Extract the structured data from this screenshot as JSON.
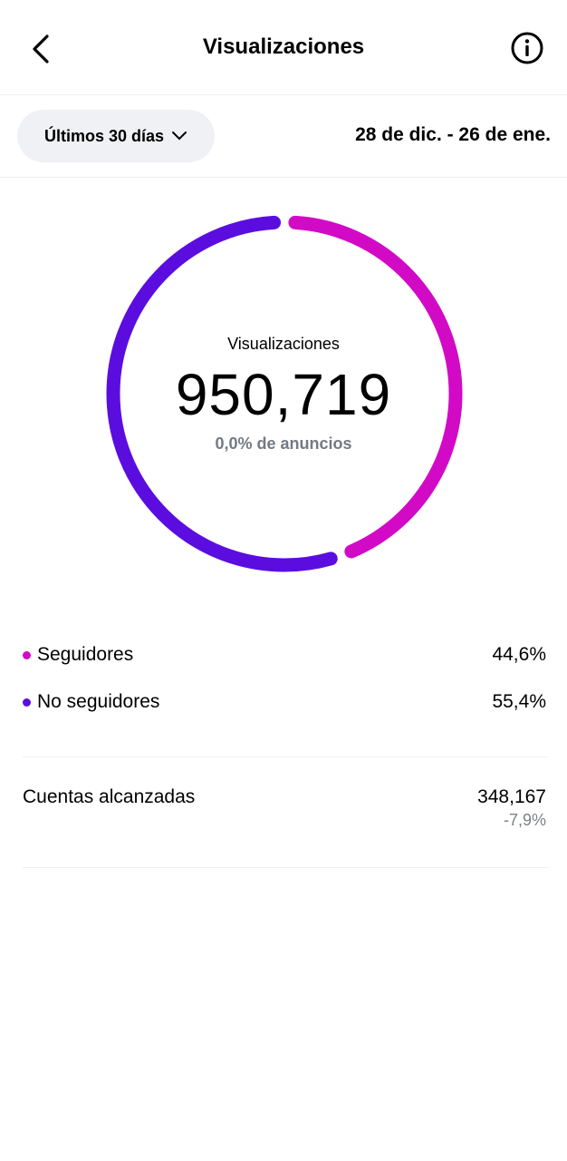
{
  "header": {
    "title": "Visualizaciones",
    "back_icon": "chevron-left-icon",
    "info_icon": "info-icon"
  },
  "filter": {
    "period": "Últimos 30 días",
    "range": "28 de dic. - 26 de ene."
  },
  "summary": {
    "label": "Visualizaciones",
    "value": "950,719",
    "ads": "0,0% de anuncios"
  },
  "colors": {
    "followers": "#d20ac6",
    "non_followers": "#5b0de0"
  },
  "breakdown": [
    {
      "label": "Seguidores",
      "value": "44,6%",
      "fraction": 0.446
    },
    {
      "label": "No seguidores",
      "value": "55,4%",
      "fraction": 0.554
    }
  ],
  "reach": {
    "label": "Cuentas alcanzadas",
    "value": "348,167",
    "change": "-7,9%"
  }
}
